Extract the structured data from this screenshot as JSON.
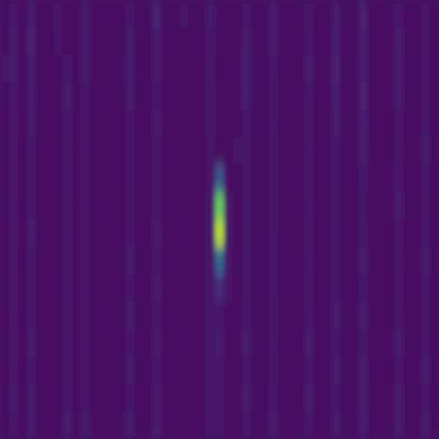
{
  "chart_data": {
    "type": "heatmap",
    "tick_labels": false,
    "color_range": [
      0,
      100
    ],
    "cells": [
      [
        6,
        9,
        5,
        11,
        5,
        5,
        8,
        5,
        5,
        10,
        5,
        6,
        5,
        5,
        9,
        5,
        5,
        12,
        5,
        5,
        7,
        5,
        5,
        10,
        6,
        5,
        5,
        9,
        5,
        5,
        11,
        5,
        6,
        5,
        8,
        5,
        5,
        10,
        5,
        5,
        12,
        5,
        5,
        6,
        9,
        5,
        5,
        8,
        6
      ],
      [
        5,
        10,
        5,
        12,
        5,
        6,
        7,
        5,
        5,
        11,
        5,
        5,
        6,
        5,
        10,
        5,
        5,
        11,
        5,
        6,
        5,
        5,
        6,
        9,
        5,
        5,
        5,
        10,
        5,
        6,
        10,
        5,
        5,
        6,
        9,
        5,
        5,
        11,
        5,
        5,
        11,
        5,
        5,
        5,
        10,
        5,
        6,
        7,
        5
      ],
      [
        7,
        11,
        5,
        10,
        5,
        5,
        6,
        9,
        5,
        10,
        5,
        5,
        5,
        6,
        11,
        5,
        5,
        10,
        5,
        5,
        6,
        5,
        5,
        8,
        5,
        5,
        6,
        11,
        5,
        5,
        9,
        5,
        5,
        5,
        10,
        5,
        5,
        12,
        5,
        6,
        10,
        5,
        6,
        5,
        11,
        5,
        5,
        9,
        5
      ],
      [
        6,
        9,
        5,
        11,
        6,
        5,
        5,
        10,
        5,
        9,
        6,
        5,
        5,
        5,
        10,
        5,
        6,
        9,
        5,
        5,
        5,
        6,
        5,
        9,
        5,
        5,
        5,
        10,
        6,
        5,
        8,
        5,
        6,
        5,
        9,
        5,
        5,
        11,
        5,
        5,
        12,
        5,
        5,
        6,
        10,
        5,
        5,
        8,
        6
      ],
      [
        5,
        8,
        5,
        10,
        5,
        5,
        6,
        9,
        5,
        8,
        5,
        5,
        6,
        5,
        9,
        5,
        5,
        10,
        5,
        5,
        6,
        5,
        5,
        8,
        6,
        5,
        5,
        9,
        5,
        5,
        9,
        5,
        5,
        6,
        8,
        5,
        5,
        10,
        5,
        5,
        11,
        5,
        6,
        5,
        9,
        5,
        5,
        9,
        5
      ],
      [
        6,
        7,
        5,
        9,
        5,
        6,
        5,
        8,
        5,
        9,
        5,
        5,
        5,
        6,
        8,
        5,
        5,
        9,
        5,
        6,
        5,
        5,
        6,
        7,
        5,
        5,
        8,
        8,
        5,
        5,
        8,
        5,
        5,
        5,
        9,
        5,
        6,
        9,
        5,
        5,
        10,
        5,
        5,
        5,
        8,
        5,
        5,
        10,
        6
      ],
      [
        5,
        8,
        5,
        8,
        5,
        5,
        6,
        9,
        5,
        8,
        6,
        5,
        5,
        5,
        9,
        5,
        5,
        8,
        5,
        5,
        6,
        5,
        5,
        7,
        35,
        6,
        5,
        8,
        5,
        5,
        7,
        5,
        6,
        5,
        8,
        5,
        5,
        9,
        5,
        6,
        9,
        5,
        5,
        6,
        9,
        5,
        5,
        9,
        5
      ],
      [
        6,
        9,
        5,
        9,
        5,
        5,
        5,
        8,
        5,
        9,
        5,
        6,
        5,
        5,
        8,
        5,
        5,
        9,
        5,
        5,
        5,
        6,
        5,
        9,
        82,
        8,
        5,
        9,
        5,
        5,
        8,
        5,
        5,
        6,
        9,
        5,
        5,
        8,
        5,
        5,
        8,
        5,
        6,
        5,
        10,
        5,
        5,
        8,
        5
      ],
      [
        5,
        8,
        5,
        10,
        6,
        5,
        5,
        9,
        5,
        8,
        5,
        5,
        5,
        6,
        9,
        5,
        5,
        10,
        5,
        6,
        6,
        5,
        5,
        9,
        92,
        8,
        5,
        8,
        5,
        5,
        9,
        5,
        5,
        5,
        8,
        5,
        6,
        9,
        5,
        5,
        9,
        5,
        5,
        5,
        9,
        5,
        5,
        9,
        6
      ],
      [
        5,
        7,
        5,
        9,
        5,
        5,
        6,
        8,
        5,
        8,
        6,
        5,
        5,
        5,
        10,
        5,
        5,
        9,
        5,
        5,
        5,
        5,
        6,
        8,
        42,
        7,
        5,
        9,
        5,
        6,
        8,
        5,
        5,
        6,
        9,
        5,
        5,
        8,
        5,
        5,
        10,
        5,
        6,
        5,
        8,
        5,
        5,
        10,
        5
      ],
      [
        6,
        8,
        5,
        8,
        5,
        6,
        5,
        9,
        5,
        9,
        5,
        5,
        6,
        5,
        9,
        5,
        5,
        10,
        5,
        5,
        6,
        5,
        5,
        8,
        16,
        7,
        5,
        8,
        5,
        5,
        9,
        5,
        6,
        5,
        8,
        5,
        5,
        9,
        5,
        6,
        9,
        5,
        5,
        5,
        9,
        5,
        5,
        9,
        5
      ],
      [
        5,
        9,
        5,
        9,
        5,
        5,
        6,
        8,
        5,
        8,
        5,
        6,
        5,
        5,
        10,
        5,
        5,
        9,
        5,
        5,
        5,
        5,
        5,
        9,
        9,
        5,
        6,
        9,
        5,
        5,
        8,
        5,
        5,
        5,
        9,
        5,
        5,
        10,
        5,
        5,
        10,
        5,
        6,
        5,
        8,
        5,
        5,
        8,
        6
      ],
      [
        6,
        8,
        5,
        10,
        5,
        5,
        5,
        9,
        5,
        9,
        5,
        5,
        5,
        6,
        9,
        5,
        5,
        10,
        5,
        6,
        6,
        5,
        5,
        8,
        10,
        5,
        5,
        10,
        5,
        5,
        9,
        5,
        6,
        5,
        10,
        5,
        5,
        9,
        5,
        5,
        9,
        5,
        5,
        6,
        10,
        5,
        5,
        9,
        5
      ],
      [
        5,
        9,
        5,
        9,
        6,
        5,
        5,
        8,
        5,
        8,
        6,
        5,
        5,
        5,
        10,
        5,
        6,
        9,
        5,
        5,
        5,
        6,
        5,
        9,
        8,
        5,
        5,
        9,
        5,
        5,
        8,
        5,
        5,
        6,
        9,
        5,
        5,
        10,
        5,
        5,
        11,
        5,
        5,
        5,
        9,
        5,
        6,
        10,
        5
      ],
      [
        6,
        10,
        5,
        10,
        5,
        5,
        6,
        9,
        5,
        9,
        5,
        5,
        6,
        5,
        9,
        5,
        5,
        10,
        5,
        5,
        6,
        5,
        5,
        8,
        9,
        5,
        5,
        10,
        5,
        6,
        9,
        5,
        5,
        5,
        10,
        5,
        5,
        9,
        5,
        5,
        10,
        5,
        6,
        5,
        10,
        5,
        5,
        9,
        6
      ],
      [
        5,
        9,
        5,
        11,
        5,
        6,
        5,
        10,
        5,
        10,
        5,
        5,
        5,
        6,
        10,
        5,
        5,
        11,
        5,
        5,
        5,
        5,
        6,
        9,
        8,
        5,
        5,
        9,
        5,
        5,
        10,
        5,
        6,
        5,
        9,
        5,
        5,
        10,
        5,
        6,
        11,
        5,
        5,
        5,
        10,
        5,
        5,
        10,
        5
      ]
    ]
  }
}
